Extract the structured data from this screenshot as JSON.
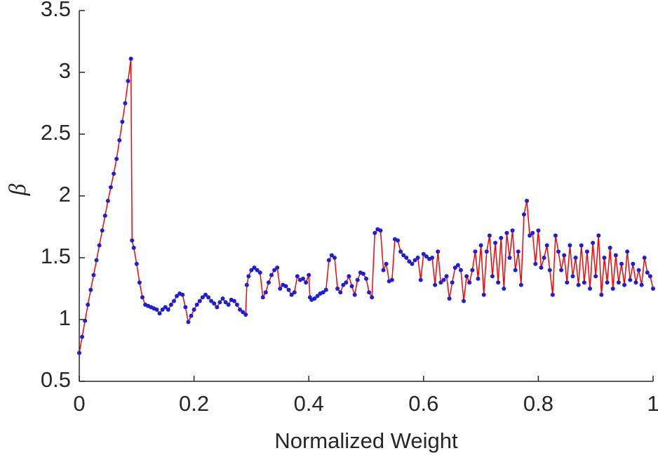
{
  "chart_data": {
    "type": "line",
    "xlabel": "Normalized Weight",
    "ylabel": "β",
    "xlim": [
      0,
      1
    ],
    "xticks": [
      0,
      0.2,
      0.4,
      0.6,
      0.8,
      1
    ],
    "ylim": [
      0.5,
      3.5
    ],
    "yticks": [
      0.5,
      1,
      1.5,
      2,
      2.5,
      3,
      3.5
    ],
    "grid": false,
    "x": [
      0,
      0.005,
      0.01,
      0.015,
      0.02,
      0.025,
      0.03,
      0.035,
      0.04,
      0.045,
      0.05,
      0.055,
      0.06,
      0.065,
      0.07,
      0.075,
      0.08,
      0.085,
      0.09,
      0.092,
      0.095,
      0.1,
      0.105,
      0.11,
      0.115,
      0.12,
      0.125,
      0.13,
      0.135,
      0.14,
      0.145,
      0.15,
      0.155,
      0.16,
      0.165,
      0.17,
      0.175,
      0.18,
      0.185,
      0.19,
      0.195,
      0.2,
      0.205,
      0.21,
      0.215,
      0.22,
      0.225,
      0.23,
      0.235,
      0.24,
      0.245,
      0.25,
      0.255,
      0.26,
      0.265,
      0.27,
      0.275,
      0.28,
      0.285,
      0.29,
      0.292,
      0.295,
      0.3,
      0.305,
      0.31,
      0.315,
      0.32,
      0.325,
      0.33,
      0.335,
      0.34,
      0.345,
      0.35,
      0.355,
      0.36,
      0.365,
      0.37,
      0.375,
      0.38,
      0.385,
      0.39,
      0.395,
      0.4,
      0.402,
      0.405,
      0.41,
      0.415,
      0.42,
      0.425,
      0.43,
      0.435,
      0.44,
      0.445,
      0.45,
      0.455,
      0.46,
      0.465,
      0.47,
      0.475,
      0.48,
      0.485,
      0.49,
      0.495,
      0.5,
      0.505,
      0.51,
      0.515,
      0.52,
      0.525,
      0.53,
      0.535,
      0.54,
      0.545,
      0.55,
      0.555,
      0.56,
      0.565,
      0.57,
      0.575,
      0.58,
      0.585,
      0.59,
      0.595,
      0.6,
      0.605,
      0.61,
      0.615,
      0.62,
      0.625,
      0.63,
      0.635,
      0.64,
      0.645,
      0.65,
      0.655,
      0.66,
      0.665,
      0.67,
      0.675,
      0.68,
      0.685,
      0.69,
      0.695,
      0.7,
      0.705,
      0.71,
      0.715,
      0.72,
      0.725,
      0.73,
      0.735,
      0.74,
      0.745,
      0.75,
      0.755,
      0.76,
      0.765,
      0.77,
      0.775,
      0.78,
      0.785,
      0.79,
      0.795,
      0.8,
      0.805,
      0.81,
      0.815,
      0.82,
      0.825,
      0.83,
      0.835,
      0.84,
      0.845,
      0.85,
      0.855,
      0.86,
      0.865,
      0.87,
      0.875,
      0.88,
      0.885,
      0.89,
      0.895,
      0.9,
      0.905,
      0.91,
      0.915,
      0.92,
      0.925,
      0.93,
      0.935,
      0.94,
      0.945,
      0.95,
      0.955,
      0.96,
      0.965,
      0.97,
      0.975,
      0.98,
      0.985,
      0.99,
      0.995,
      1
    ],
    "series": [
      {
        "color": "#ff0000",
        "marker_color": "#1f1fd0",
        "values": [
          0.73,
          0.86,
          0.99,
          1.12,
          1.24,
          1.36,
          1.48,
          1.6,
          1.72,
          1.84,
          1.96,
          2.07,
          2.18,
          2.3,
          2.45,
          2.6,
          2.75,
          2.93,
          3.11,
          1.64,
          1.58,
          1.45,
          1.3,
          1.18,
          1.12,
          1.11,
          1.1,
          1.09,
          1.08,
          1.05,
          1.08,
          1.1,
          1.08,
          1.12,
          1.15,
          1.19,
          1.21,
          1.2,
          1.1,
          0.98,
          1.03,
          1.08,
          1.12,
          1.15,
          1.18,
          1.2,
          1.18,
          1.15,
          1.13,
          1.1,
          1.14,
          1.17,
          1.14,
          1.12,
          1.16,
          1.15,
          1.12,
          1.08,
          1.06,
          1.04,
          1.28,
          1.35,
          1.4,
          1.42,
          1.4,
          1.38,
          1.18,
          1.22,
          1.3,
          1.36,
          1.4,
          1.42,
          1.25,
          1.28,
          1.27,
          1.24,
          1.2,
          1.22,
          1.35,
          1.32,
          1.33,
          1.3,
          1.36,
          1.18,
          1.16,
          1.17,
          1.19,
          1.21,
          1.22,
          1.24,
          1.48,
          1.52,
          1.5,
          1.25,
          1.22,
          1.28,
          1.3,
          1.35,
          1.27,
          1.2,
          1.32,
          1.38,
          1.37,
          1.33,
          1.22,
          1.18,
          1.7,
          1.73,
          1.72,
          1.4,
          1.45,
          1.31,
          1.32,
          1.65,
          1.64,
          1.55,
          1.52,
          1.5,
          1.47,
          1.45,
          1.48,
          1.5,
          1.32,
          1.53,
          1.51,
          1.49,
          1.5,
          1.28,
          1.55,
          1.3,
          1.32,
          1.35,
          1.17,
          1.3,
          1.42,
          1.44,
          1.4,
          1.15,
          1.35,
          1.3,
          1.4,
          1.55,
          1.33,
          1.6,
          1.2,
          1.55,
          1.68,
          1.35,
          1.62,
          1.3,
          1.66,
          1.25,
          1.7,
          1.5,
          1.72,
          1.4,
          1.55,
          1.28,
          1.85,
          1.96,
          1.68,
          1.7,
          1.45,
          1.72,
          1.42,
          1.5,
          1.6,
          1.4,
          1.2,
          1.68,
          1.55,
          1.4,
          1.52,
          1.3,
          1.6,
          1.35,
          1.5,
          1.28,
          1.6,
          1.3,
          1.55,
          1.25,
          1.62,
          1.35,
          1.68,
          1.2,
          1.5,
          1.3,
          1.58,
          1.25,
          1.52,
          1.3,
          1.45,
          1.28,
          1.55,
          1.32,
          1.45,
          1.3,
          1.4,
          1.28,
          1.5,
          1.38,
          1.35,
          1.25
        ]
      }
    ]
  }
}
